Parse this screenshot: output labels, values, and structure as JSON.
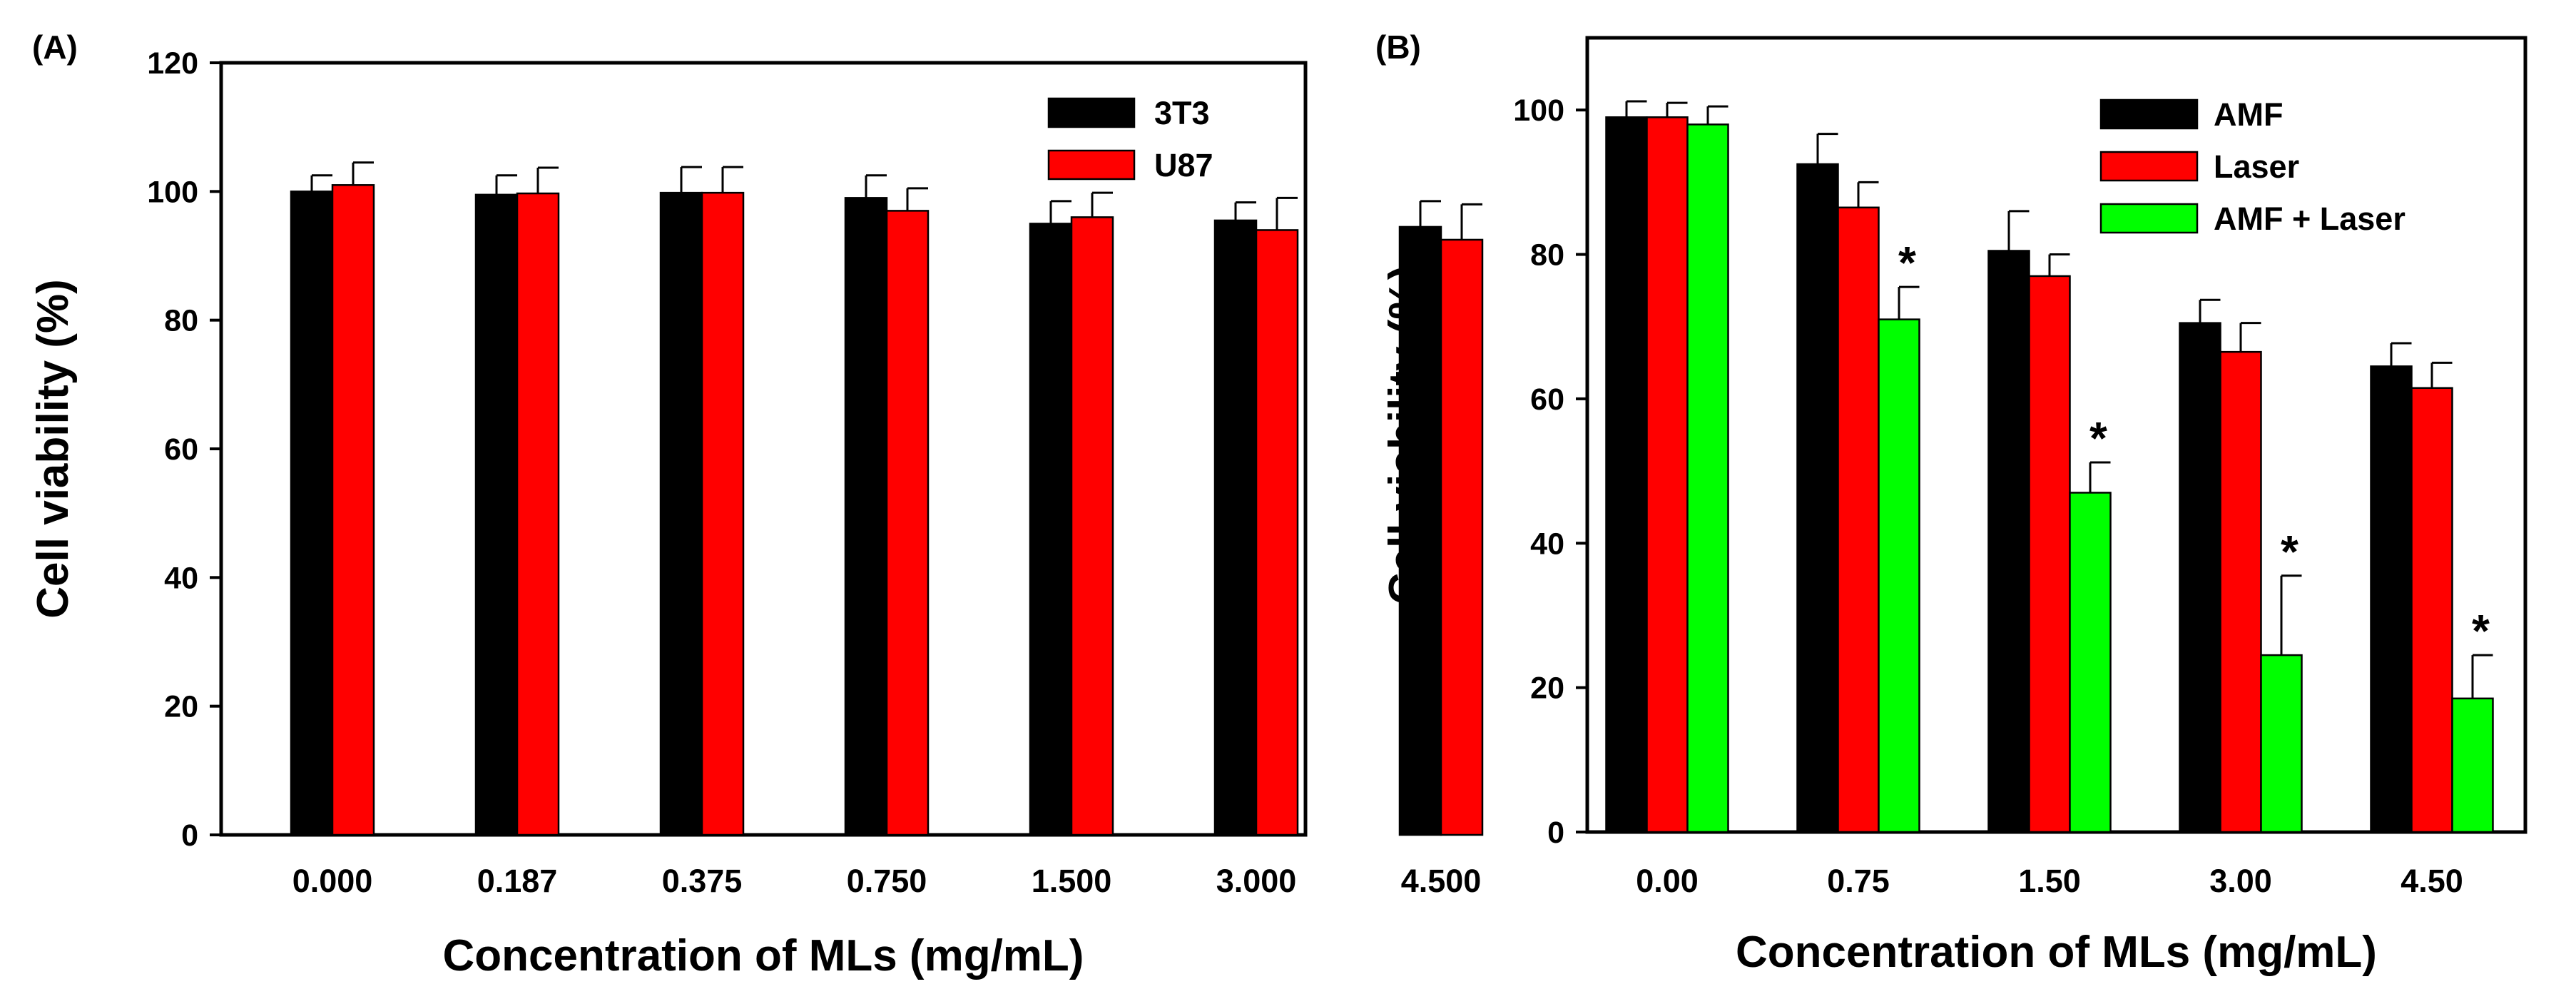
{
  "chart_data": [
    {
      "panel_label": "(A)",
      "type": "bar",
      "title": "",
      "xlabel": "Concentration of MLs (mg/mL)",
      "ylabel": "Cell viability (%)",
      "ylim": [
        0,
        120
      ],
      "yticks": [
        0,
        20,
        40,
        60,
        80,
        100,
        120
      ],
      "grid": false,
      "legend_position": "top-right",
      "categories": [
        "0.000",
        "0.187",
        "0.375",
        "0.750",
        "1.500",
        "3.000",
        "4.500"
      ],
      "series": [
        {
          "name": "3T3",
          "color": "#000000",
          "values": [
            100,
            99.5,
            99.8,
            99,
            95,
            95.5,
            94.5
          ],
          "errors": [
            2.5,
            3,
            4,
            3.5,
            3.5,
            2.8,
            4
          ]
        },
        {
          "name": "U87",
          "color": "#ff0000",
          "values": [
            101,
            99.7,
            99.8,
            97,
            96,
            94,
            92.5
          ],
          "errors": [
            3.5,
            4,
            4,
            3.5,
            3.8,
            5,
            5.5
          ]
        }
      ],
      "annotations": []
    },
    {
      "panel_label": "(B)",
      "type": "bar",
      "title": "",
      "xlabel": "Concentration of MLs (mg/mL)",
      "ylabel": "Cell viability (%)",
      "ylim": [
        0,
        110
      ],
      "yticks": [
        0,
        20,
        40,
        60,
        80,
        100
      ],
      "grid": false,
      "legend_position": "top-right",
      "categories": [
        "0.00",
        "0.75",
        "1.50",
        "3.00",
        "4.50"
      ],
      "series": [
        {
          "name": "AMF",
          "color": "#000000",
          "values": [
            99,
            92.5,
            80.5,
            70.5,
            64.5
          ],
          "errors": [
            2.2,
            4.2,
            5.5,
            3.2,
            3.2
          ]
        },
        {
          "name": "Laser",
          "color": "#ff0000",
          "values": [
            99,
            86.5,
            77,
            66.5,
            61.5
          ],
          "errors": [
            2,
            3.5,
            3,
            4,
            3.5
          ]
        },
        {
          "name": "AMF + Laser",
          "color": "#00ff00",
          "values": [
            98,
            71,
            47,
            24.5,
            18.5
          ],
          "errors": [
            2.5,
            4.5,
            4.2,
            11,
            6
          ]
        }
      ],
      "annotations": [
        {
          "category": "0.75",
          "text": "*"
        },
        {
          "category": "1.50",
          "text": "*"
        },
        {
          "category": "3.00",
          "text": "*"
        },
        {
          "category": "4.50",
          "text": "*"
        }
      ]
    }
  ]
}
